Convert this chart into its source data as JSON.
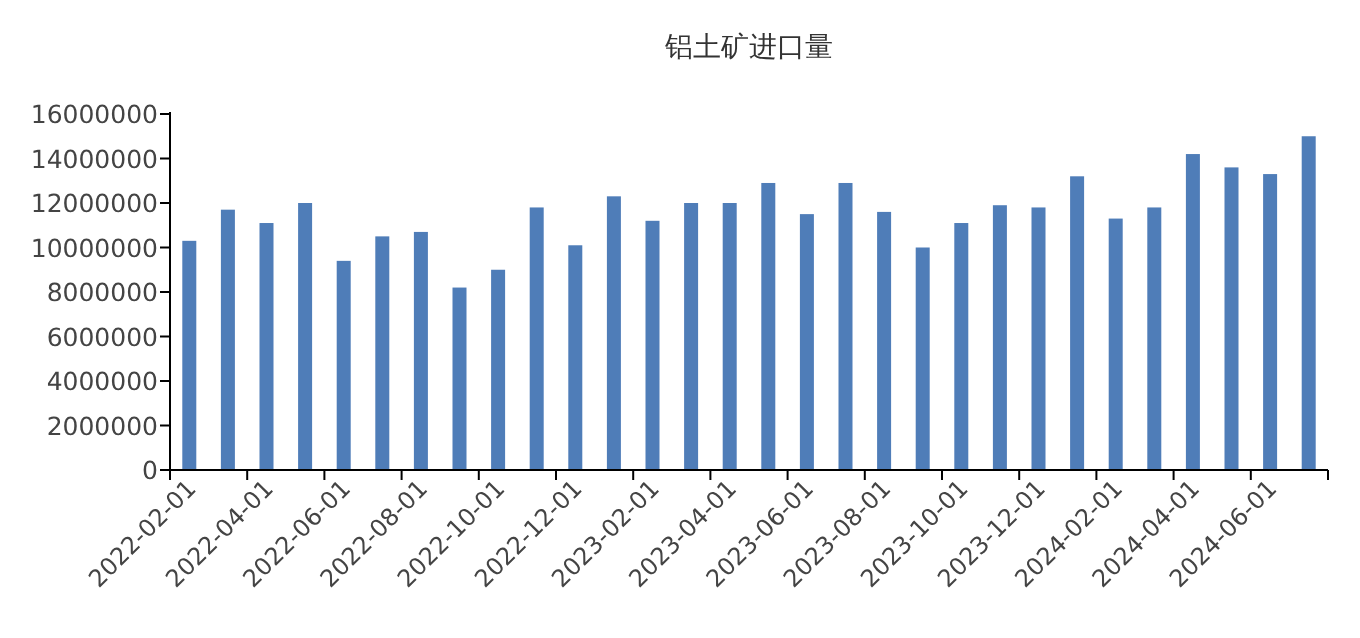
{
  "chart_data": {
    "type": "bar",
    "title": "铝土矿进口量",
    "categories": [
      "2022-02-01",
      null,
      "2022-04-01",
      null,
      "2022-06-01",
      null,
      "2022-08-01",
      null,
      "2022-10-01",
      null,
      "2022-12-01",
      null,
      "2023-02-01",
      null,
      "2023-04-01",
      null,
      "2023-06-01",
      null,
      "2023-08-01",
      null,
      "2023-10-01",
      null,
      "2023-12-01",
      null,
      "2024-02-01",
      null,
      "2024-04-01",
      null,
      "2024-06-01",
      null
    ],
    "values": [
      10300000,
      11700000,
      11100000,
      12000000,
      9400000,
      10500000,
      10700000,
      8200000,
      9000000,
      11800000,
      10100000,
      12300000,
      11200000,
      12000000,
      12000000,
      12900000,
      11500000,
      12900000,
      11600000,
      10000000,
      11100000,
      11900000,
      11800000,
      13200000,
      11300000,
      11800000,
      14200000,
      13600000,
      13300000,
      15000000
    ],
    "color": "#4f7db8",
    "ylim": [
      0,
      16000000
    ],
    "yticks": [
      0,
      2000000,
      4000000,
      6000000,
      8000000,
      10000000,
      12000000,
      14000000,
      16000000
    ],
    "grid": false
  }
}
